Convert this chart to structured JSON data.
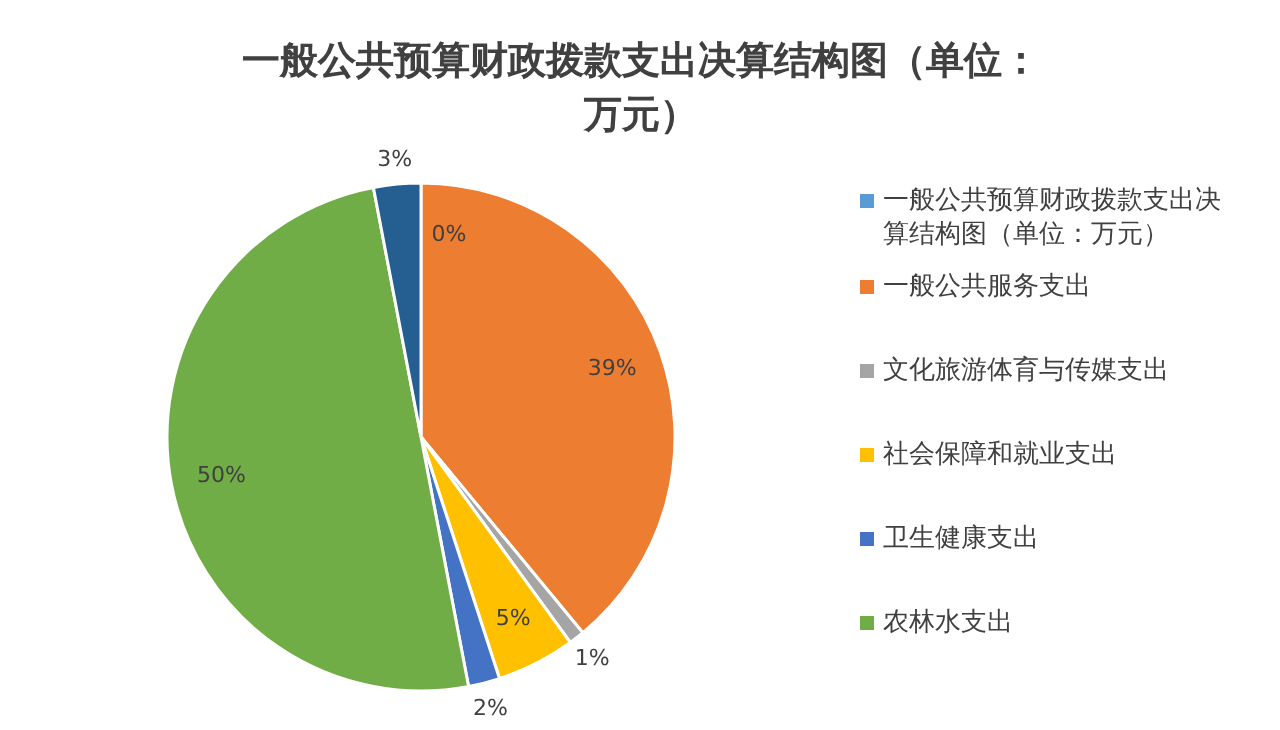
{
  "chart_data": {
    "type": "pie",
    "title": "一般公共预算财政拨款支出决算结构图（单位：万元）",
    "categories": [
      "一般公共预算财政拨款支出决算结构图（单位：万元）",
      "一般公共服务支出",
      "文化旅游体育与传媒支出",
      "社会保障和就业支出",
      "卫生健康支出",
      "农林水支出",
      null
    ],
    "values": [
      0,
      39,
      1,
      5,
      2,
      50,
      3
    ],
    "colors": [
      "#5b9bd5",
      "#ed7d31",
      "#a5a5a5",
      "#ffc000",
      "#4472c4",
      "#70ad47",
      "#255e91"
    ],
    "value_labels": [
      "0%",
      "39%",
      "1%",
      "5%",
      "2%",
      "50%",
      "3%"
    ],
    "legend": "right"
  }
}
